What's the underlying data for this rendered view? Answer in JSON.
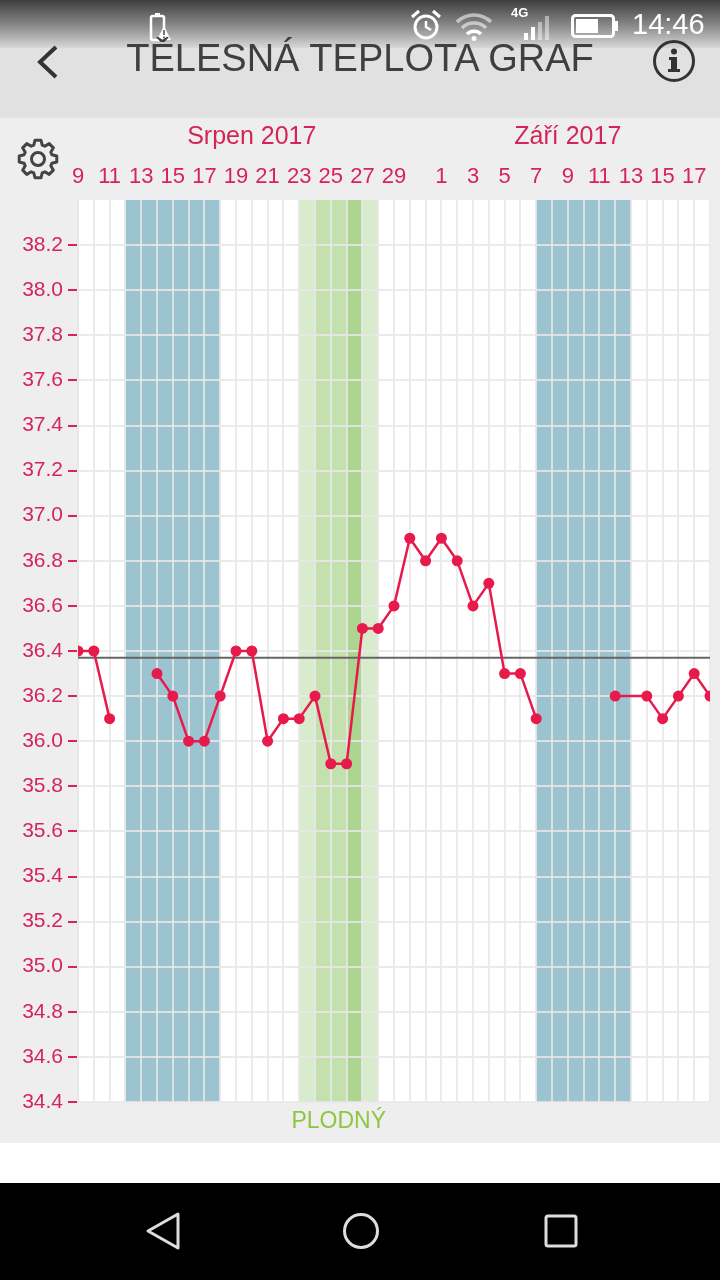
{
  "chart_data": {
    "type": "line",
    "title": "TĚLESNÁ TEPLOTA GRAF",
    "x": [
      "2017-08-09",
      "2017-08-10",
      "2017-08-11",
      "2017-08-12",
      "2017-08-14",
      "2017-08-15",
      "2017-08-16",
      "2017-08-17",
      "2017-08-18",
      "2017-08-19",
      "2017-08-20",
      "2017-08-21",
      "2017-08-22",
      "2017-08-23",
      "2017-08-24",
      "2017-08-25",
      "2017-08-26",
      "2017-08-27",
      "2017-08-28",
      "2017-08-29",
      "2017-08-30",
      "2017-08-31",
      "2017-09-01",
      "2017-09-02",
      "2017-09-03",
      "2017-09-04",
      "2017-09-05",
      "2017-09-06",
      "2017-09-07",
      "2017-09-08",
      "2017-09-12",
      "2017-09-14",
      "2017-09-15",
      "2017-09-16",
      "2017-09-17",
      "2017-09-18"
    ],
    "series": [
      {
        "color": "#e8194b",
        "values": [
          36.4,
          36.4,
          36.1,
          null,
          36.3,
          36.2,
          36.0,
          36.0,
          36.2,
          36.4,
          36.4,
          36.0,
          36.1,
          36.1,
          36.2,
          35.9,
          35.9,
          36.5,
          36.5,
          36.6,
          36.9,
          36.8,
          36.9,
          36.8,
          36.6,
          36.7,
          36.3,
          36.3,
          36.1,
          null,
          36.2,
          36.2,
          36.1,
          36.2,
          36.3,
          36.2
        ]
      }
    ],
    "xlim": [
      "2017-08-09",
      "2017-09-18"
    ],
    "xticks": [
      {
        "value": "2017-08-09",
        "label": "9"
      },
      {
        "value": "2017-08-10",
        "label": null
      },
      {
        "value": "2017-08-11",
        "label": "11"
      },
      {
        "value": "2017-08-12",
        "label": null
      },
      {
        "value": "2017-08-13",
        "label": "13"
      },
      {
        "value": "2017-08-14",
        "label": null
      },
      {
        "value": "2017-08-15",
        "label": "15"
      },
      {
        "value": "2017-08-16",
        "label": null
      },
      {
        "value": "2017-08-17",
        "label": "17"
      },
      {
        "value": "2017-08-18",
        "label": null
      },
      {
        "value": "2017-08-19",
        "label": "19"
      },
      {
        "value": "2017-08-20",
        "label": null
      },
      {
        "value": "2017-08-21",
        "label": "21"
      },
      {
        "value": "2017-08-22",
        "label": null
      },
      {
        "value": "2017-08-23",
        "label": "23"
      },
      {
        "value": "2017-08-24",
        "label": null
      },
      {
        "value": "2017-08-25",
        "label": "25"
      },
      {
        "value": "2017-08-26",
        "label": null
      },
      {
        "value": "2017-08-27",
        "label": "27"
      },
      {
        "value": "2017-08-28",
        "label": null
      },
      {
        "value": "2017-08-29",
        "label": "29"
      },
      {
        "value": "2017-08-30",
        "label": null
      },
      {
        "value": "2017-08-31",
        "label": null
      },
      {
        "value": "2017-09-01",
        "label": "1"
      },
      {
        "value": "2017-09-02",
        "label": null
      },
      {
        "value": "2017-09-03",
        "label": "3"
      },
      {
        "value": "2017-09-04",
        "label": null
      },
      {
        "value": "2017-09-05",
        "label": "5"
      },
      {
        "value": "2017-09-06",
        "label": null
      },
      {
        "value": "2017-09-07",
        "label": "7"
      },
      {
        "value": "2017-09-08",
        "label": null
      },
      {
        "value": "2017-09-09",
        "label": "9"
      },
      {
        "value": "2017-09-10",
        "label": null
      },
      {
        "value": "2017-09-11",
        "label": "11"
      },
      {
        "value": "2017-09-12",
        "label": null
      },
      {
        "value": "2017-09-13",
        "label": "13"
      },
      {
        "value": "2017-09-14",
        "label": null
      },
      {
        "value": "2017-09-15",
        "label": "15"
      },
      {
        "value": "2017-09-16",
        "label": null
      },
      {
        "value": "2017-09-17",
        "label": "17"
      },
      {
        "value": "2017-09-18",
        "label": null
      }
    ],
    "x2lim": [
      "2017-08-09",
      "2017-09-18"
    ],
    "x2ticks": [
      {
        "value": "2017-08-20",
        "label": "Srpen 2017"
      },
      {
        "value": "2017-09-09",
        "label": "Září 2017"
      }
    ],
    "ylim": [
      34.4,
      38.4
    ],
    "yticks": [
      34.4,
      34.6,
      34.8,
      {
        "value": 35,
        "label": "35.0"
      },
      35.2,
      35.4,
      35.6,
      35.8,
      {
        "value": 36,
        "label": "36.0"
      },
      36.2,
      36.4,
      36.6,
      36.8,
      {
        "value": 37,
        "label": "37.0"
      },
      37.2,
      37.4,
      37.6,
      37.8,
      {
        "value": 38,
        "label": "38.0"
      },
      38.2
    ],
    "grid": true,
    "marker": "circle",
    "line_style": "solid",
    "ref_lines": [
      {
        "axis": "y",
        "value": 36.37,
        "color": "#666666"
      }
    ],
    "bands": [
      {
        "axis": "x",
        "from": "2017-08-12",
        "to": "2017-08-18",
        "color": "#9bc4d0"
      },
      {
        "axis": "x",
        "from": "2017-08-23",
        "to": "2017-08-28",
        "color": "#d9ebcd",
        "label": "PLODNÝ"
      },
      {
        "axis": "x",
        "from": "2017-08-24",
        "to": "2017-08-26",
        "color": "#c4e0ae"
      },
      {
        "axis": "x",
        "from": "2017-08-26",
        "to": "2017-08-27",
        "color": "#acd690"
      },
      {
        "axis": "x",
        "from": "2017-09-07",
        "to": "2017-09-13",
        "color": "#9bc4d0"
      }
    ],
    "annotations": [
      "4G",
      "14:46"
    ]
  }
}
